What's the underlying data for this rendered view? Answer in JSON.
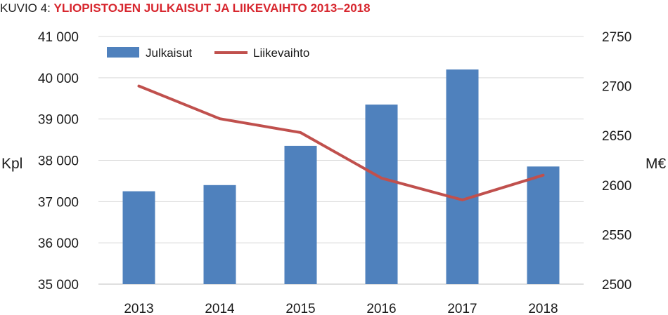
{
  "title": {
    "prefix": "KUVIO 4:",
    "main": "YLIOPISTOJEN JULKAISUT JA LIIKEVAIHTO 2013–2018"
  },
  "colors": {
    "bars": "#4f81bd",
    "line": "#c0504d",
    "title_accent": "#d7262e",
    "grid": "#d9d9d9"
  },
  "chart_data": {
    "type": "bar",
    "categories": [
      "2013",
      "2014",
      "2015",
      "2016",
      "2017",
      "2018"
    ],
    "series": [
      {
        "name": "Julkaisut",
        "type": "bar",
        "axis": "left",
        "values": [
          37250,
          37400,
          38350,
          39350,
          40200,
          37850
        ]
      },
      {
        "name": "Liikevaihto",
        "type": "line",
        "axis": "right",
        "values": [
          2700,
          2667,
          2653,
          2607,
          2585,
          2610
        ]
      }
    ],
    "ylabel_left": "Kpl",
    "ylabel_right": "M€",
    "ylim_left": [
      35000,
      41000
    ],
    "ylim_right": [
      2500,
      2750
    ],
    "yticks_left": [
      "35 000",
      "36 000",
      "37 000",
      "38 000",
      "39 000",
      "40 000",
      "41 000"
    ],
    "yticks_right": [
      "2500",
      "2550",
      "2600",
      "2650",
      "2700",
      "2750"
    ],
    "grid": true,
    "legend": "top-left"
  }
}
